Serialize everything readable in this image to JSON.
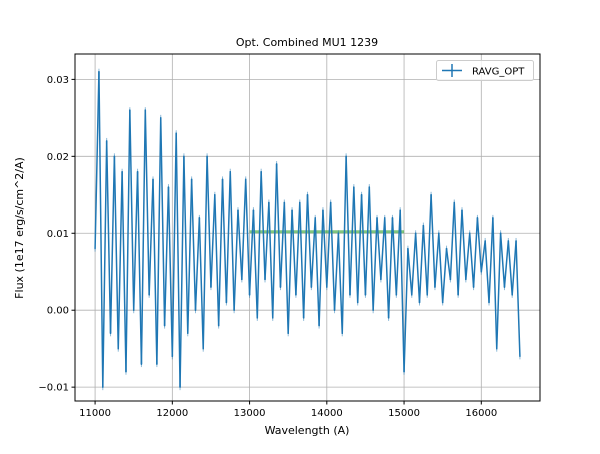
{
  "chart_data": {
    "type": "line",
    "title": "Opt. Combined MU1 1239",
    "xlabel": "Wavelength (A)",
    "ylabel": "Flux (1e17 erg/s/cm^2/A)",
    "xlim": [
      10740,
      16760
    ],
    "ylim": [
      -0.0118,
      0.0333
    ],
    "xticks": [
      11000,
      12000,
      13000,
      14000,
      15000,
      16000
    ],
    "xtick_labels": [
      "11000",
      "12000",
      "13000",
      "14000",
      "15000",
      "16000"
    ],
    "yticks": [
      -0.01,
      0.0,
      0.01,
      0.02,
      0.03
    ],
    "ytick_labels": [
      "−0.01",
      "0.00",
      "0.01",
      "0.02",
      "0.03"
    ],
    "grid": true,
    "legend": {
      "placement": "top-right",
      "entries": [
        "RAVG_OPT"
      ]
    },
    "reference_line": {
      "x": [
        13000,
        15000
      ],
      "y": 0.0102,
      "color": "#2ca02c"
    },
    "series": [
      {
        "name": "RAVG_OPT",
        "color": "#1f77b4",
        "x_start": 11000,
        "x_step": 50,
        "y": [
          0.008,
          0.031,
          -0.01,
          0.022,
          -0.003,
          0.02,
          -0.005,
          0.018,
          -0.008,
          0.026,
          0.0,
          0.018,
          -0.007,
          0.026,
          0.002,
          0.017,
          -0.007,
          0.025,
          -0.002,
          0.016,
          -0.006,
          0.023,
          -0.01,
          0.02,
          -0.003,
          0.017,
          0.0,
          0.012,
          -0.005,
          0.02,
          0.003,
          0.015,
          -0.002,
          0.017,
          0.001,
          0.018,
          0.0,
          0.013,
          0.004,
          0.017,
          0.002,
          0.013,
          -0.001,
          0.018,
          0.004,
          0.014,
          -0.001,
          0.019,
          0.003,
          0.014,
          -0.003,
          0.013,
          0.002,
          0.014,
          -0.001,
          0.015,
          0.003,
          0.012,
          -0.002,
          0.013,
          0.003,
          0.014,
          0.0,
          0.01,
          -0.003,
          0.02,
          0.002,
          0.016,
          0.001,
          0.015,
          0.002,
          0.016,
          0.0,
          0.012,
          0.004,
          0.012,
          -0.001,
          0.012,
          0.002,
          0.013,
          -0.008,
          0.008,
          0.002,
          0.01,
          0.001,
          0.011,
          0.002,
          0.015,
          0.003,
          0.01,
          0.001,
          0.008,
          0.004,
          0.014,
          0.002,
          0.013,
          0.004,
          0.01,
          0.003,
          0.012,
          0.005,
          0.009,
          0.001,
          0.012,
          -0.005,
          0.01,
          0.003,
          0.009,
          0.002,
          0.009,
          -0.006
        ]
      }
    ]
  }
}
